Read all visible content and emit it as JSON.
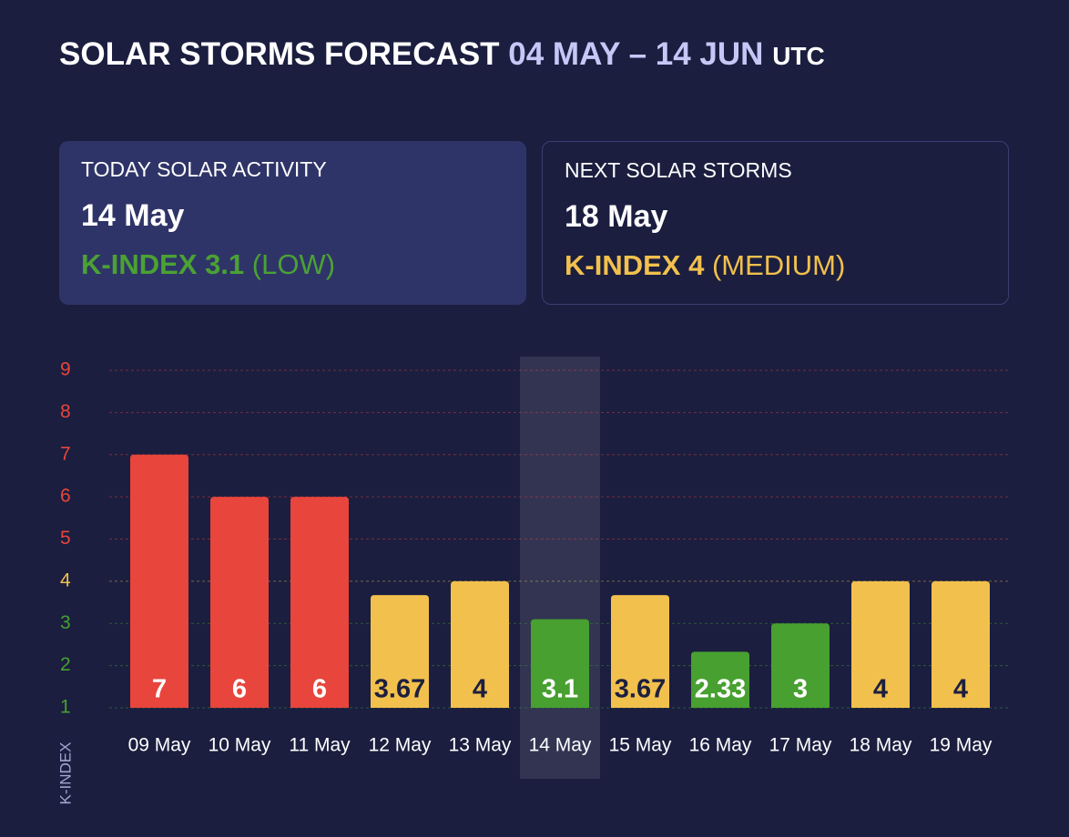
{
  "header": {
    "title": "SOLAR STORMS FORECAST",
    "range": "04 MAY – 14 JUN",
    "zone": "UTC"
  },
  "cards": [
    {
      "heading": "TODAY SOLAR ACTIVITY",
      "date": "14 May",
      "index": "K-INDEX 3.1",
      "level": "(LOW)",
      "color": "#4aa233"
    },
    {
      "heading": "NEXT SOLAR STORMS",
      "date": "18 May",
      "index": "K-INDEX 4",
      "level": "(MEDIUM)",
      "color": "#f2c04d"
    }
  ],
  "chart_data": {
    "type": "bar",
    "y_label": "K-INDEX",
    "categories": [
      "09 May",
      "10 May",
      "11 May",
      "12 May",
      "13 May",
      "14 May",
      "15 May",
      "16 May",
      "17 May",
      "18 May",
      "19 May"
    ],
    "values": [
      7,
      6,
      6,
      3.67,
      4,
      3.1,
      3.67,
      2.33,
      3,
      4,
      4
    ],
    "colors": [
      "#e8453c",
      "#e8453c",
      "#e8453c",
      "#f2c04d",
      "#f2c04d",
      "#47a02f",
      "#f2c04d",
      "#47a02f",
      "#47a02f",
      "#f2c04d",
      "#f2c04d"
    ],
    "value_label_colors": [
      "#ffffff",
      "#ffffff",
      "#ffffff",
      "#1c1f3f",
      "#1c1f3f",
      "#ffffff",
      "#1c1f3f",
      "#ffffff",
      "#ffffff",
      "#1c1f3f",
      "#1c1f3f"
    ],
    "highlight": "14 May",
    "ylim": [
      1,
      9
    ],
    "yticks": [
      1,
      2,
      3,
      4,
      5,
      6,
      7,
      8,
      9
    ],
    "ytick_colors": [
      "#47a02f",
      "#47a02f",
      "#47a02f",
      "#f2c04d",
      "#e8453c",
      "#e8453c",
      "#e8453c",
      "#e8453c",
      "#e8453c"
    ],
    "grid": true
  }
}
